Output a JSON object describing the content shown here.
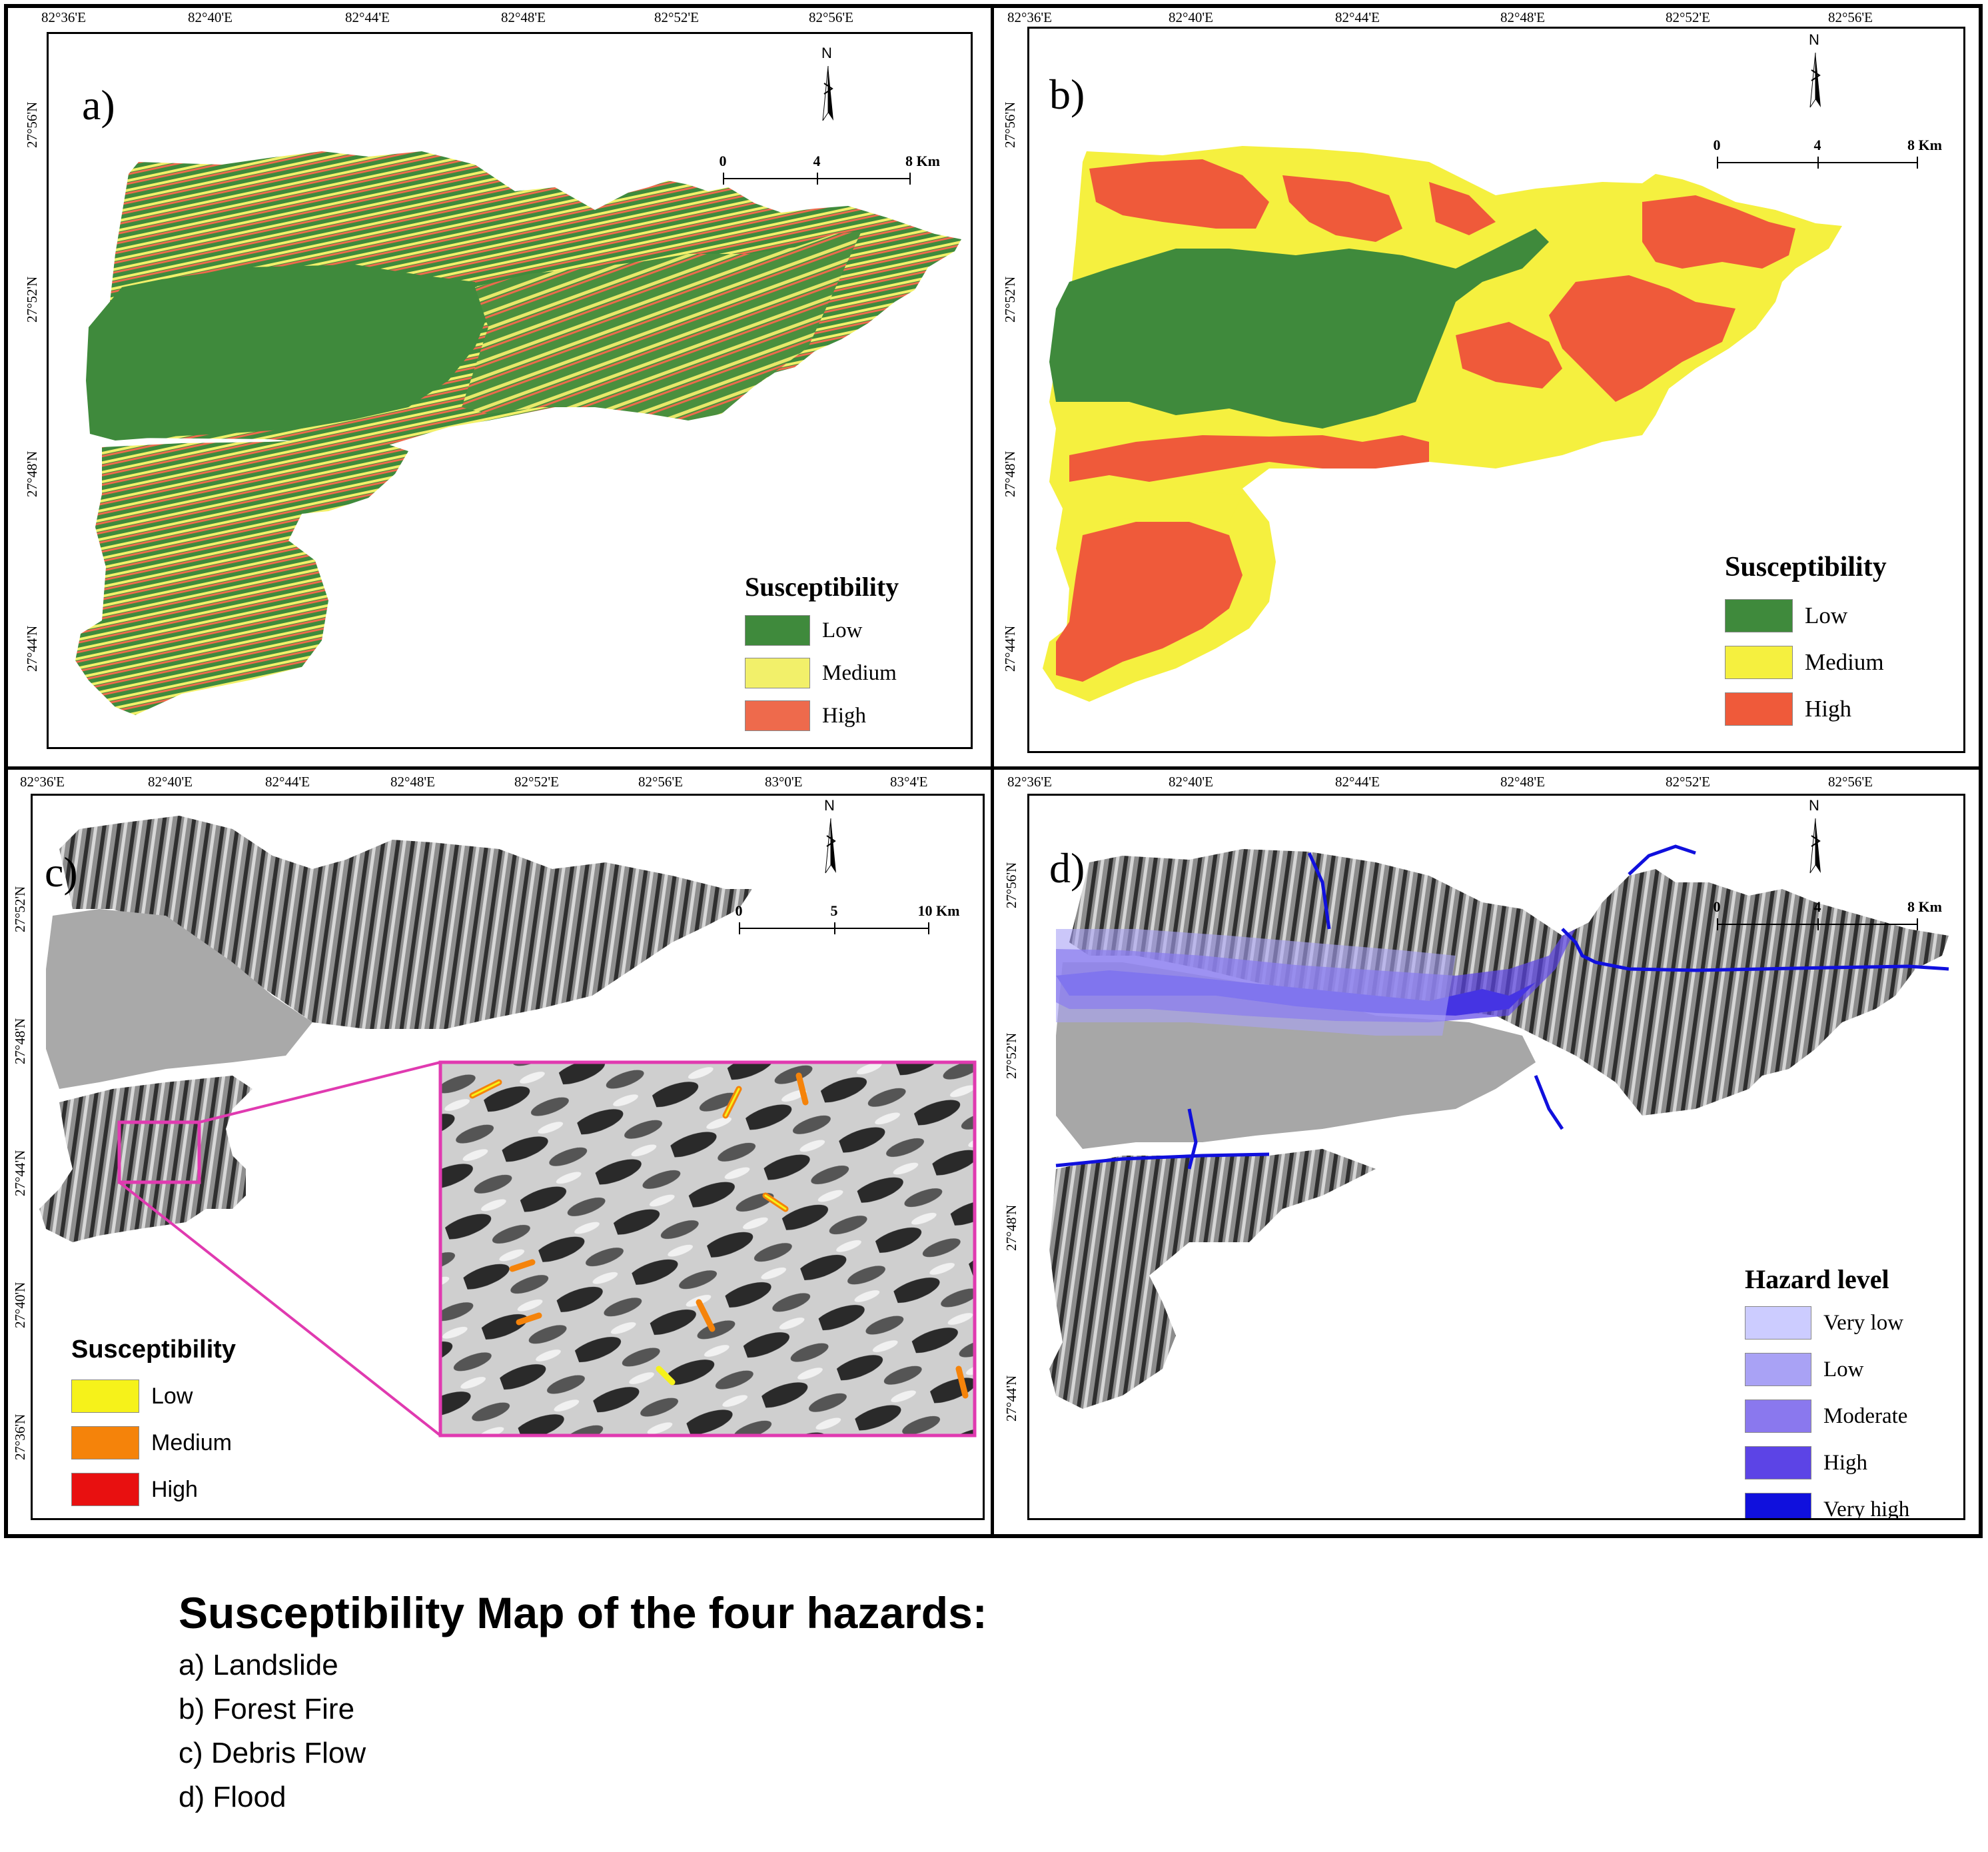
{
  "panels": [
    {
      "letter": "a)",
      "lon_ticks": [
        "82°36'E",
        "82°40'E",
        "82°44'E",
        "82°48'E",
        "82°52'E",
        "82°56'E"
      ],
      "lat_ticks": [
        "27°56'N",
        "27°52'N",
        "27°48'N",
        "27°44'N"
      ],
      "north_label": "N",
      "scale": {
        "labels": [
          "0",
          "4",
          "8 Km"
        ]
      },
      "legend": {
        "title": "Susceptibility",
        "items": [
          {
            "label": "Low",
            "color": "#3f8a3c"
          },
          {
            "label": "Medium",
            "color": "#f2f06a"
          },
          {
            "label": "High",
            "color": "#ee6a4c"
          }
        ]
      }
    },
    {
      "letter": "b)",
      "lon_ticks": [
        "82°36'E",
        "82°40'E",
        "82°44'E",
        "82°48'E",
        "82°52'E",
        "82°56'E"
      ],
      "lat_ticks": [
        "27°56'N",
        "27°52'N",
        "27°48'N",
        "27°44'N"
      ],
      "north_label": "N",
      "scale": {
        "labels": [
          "0",
          "4",
          "8 Km"
        ]
      },
      "legend": {
        "title": "Susceptibility",
        "items": [
          {
            "label": "Low",
            "color": "#3f8a3c"
          },
          {
            "label": "Medium",
            "color": "#f5f03f"
          },
          {
            "label": "High",
            "color": "#ef5a3a"
          }
        ]
      }
    },
    {
      "letter": "c)",
      "lon_ticks": [
        "82°36'E",
        "82°40'E",
        "82°44'E",
        "82°48'E",
        "82°52'E",
        "82°56'E",
        "83°0'E",
        "83°4'E"
      ],
      "lat_ticks": [
        "27°52'N",
        "27°48'N",
        "27°44'N",
        "27°40'N",
        "27°36'N"
      ],
      "north_label": "N",
      "scale": {
        "labels": [
          "0",
          "5",
          "10 Km"
        ]
      },
      "legend": {
        "title": "Susceptibility",
        "items": [
          {
            "label": "Low",
            "color": "#f6f21a"
          },
          {
            "label": "Medium",
            "color": "#f5830a"
          },
          {
            "label": "High",
            "color": "#e81010"
          }
        ]
      }
    },
    {
      "letter": "d)",
      "lon_ticks": [
        "82°36'E",
        "82°40'E",
        "82°44'E",
        "82°48'E",
        "82°52'E",
        "82°56'E"
      ],
      "lat_ticks": [
        "27°56'N",
        "27°52'N",
        "27°48'N",
        "27°44'N"
      ],
      "north_label": "N",
      "scale": {
        "labels": [
          "0",
          "4",
          "8 Km"
        ]
      },
      "legend": {
        "title": "Hazard level",
        "items": [
          {
            "label": "Very low",
            "color": "#ccccff"
          },
          {
            "label": "Low",
            "color": "#a9a2f5"
          },
          {
            "label": "Moderate",
            "color": "#8a78ee"
          },
          {
            "label": "High",
            "color": "#5c44e6"
          },
          {
            "label": "Very high",
            "color": "#1010dd"
          }
        ]
      }
    }
  ],
  "caption": {
    "title": "Susceptibility Map of the four hazards:",
    "lines": [
      "a) Landslide",
      "b) Forest Fire",
      "c) Debris Flow",
      "d) Flood"
    ]
  }
}
